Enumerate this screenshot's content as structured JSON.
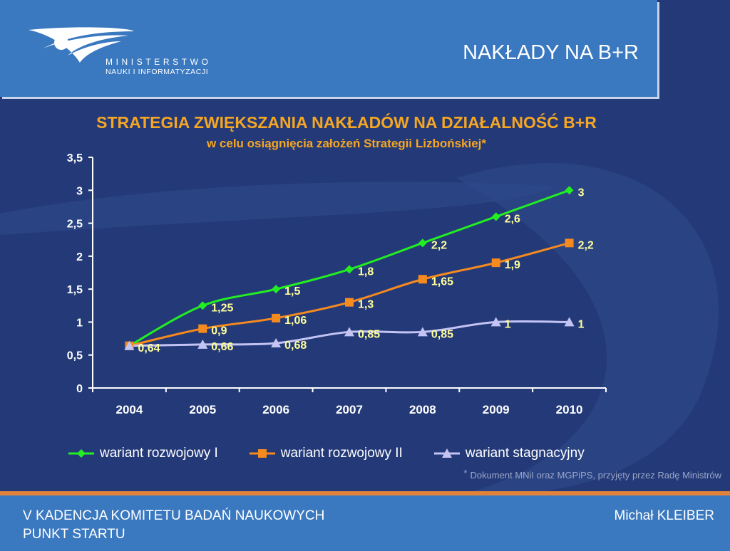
{
  "header": {
    "title": "NAKŁADY NA B+R",
    "ministry_line1": "MINISTERSTWO",
    "ministry_line2": "NAUKI I INFORMATYZACJI"
  },
  "footer": {
    "left_line1": "V KADENCJA KOMITETU BADAŃ NAUKOWYCH",
    "left_line2": "PUNKT STARTU",
    "right": "Michał KLEIBER"
  },
  "footnote": {
    "marker": "*",
    "text": "Dokument MNiI oraz MGPiPS, przyjęty przez Radę Ministrów"
  },
  "colors": {
    "background": "#243a78",
    "band": "#3a78c0",
    "accent": "#e0823a",
    "title": "#f5a623",
    "label": "#ffff99"
  },
  "chart_data": {
    "type": "line",
    "title": "STRATEGIA ZWIĘKSZANIA NAKŁADÓW NA DZIAŁALNOŚĆ B+R",
    "subtitle": "w celu osiągnięcia założeń Strategii Lizbońskiej*",
    "categories": [
      "2004",
      "2005",
      "2006",
      "2007",
      "2008",
      "2009",
      "2010"
    ],
    "ylim": [
      0,
      3.5
    ],
    "yticks": [
      "0",
      "0,5",
      "1",
      "1,5",
      "2",
      "2,5",
      "3",
      "3,5"
    ],
    "grid": false,
    "legend_position": "bottom",
    "series": [
      {
        "name": "wariant rozwojowy I",
        "color": "#22ee22",
        "marker": "diamond",
        "values": [
          0.64,
          1.25,
          1.5,
          1.8,
          2.2,
          2.6,
          3
        ],
        "labels": [
          "",
          "1,25",
          "1,5",
          "1,8",
          "2,2",
          "2,6",
          "3"
        ]
      },
      {
        "name": "wariant rozwojowy II",
        "color": "#f58a1f",
        "marker": "square",
        "values": [
          0.64,
          0.9,
          1.06,
          1.3,
          1.65,
          1.9,
          2.2
        ],
        "labels": [
          "",
          "0,9",
          "1,06",
          "1,3",
          "1,65",
          "1,9",
          "2,2"
        ]
      },
      {
        "name": "wariant stagnacyjny",
        "color": "#c4c4f4",
        "marker": "triangle",
        "values": [
          0.64,
          0.66,
          0.68,
          0.85,
          0.85,
          1,
          1
        ],
        "labels": [
          "0,64",
          "0,66",
          "0,68",
          "0,85",
          "0,85",
          "1",
          "1"
        ]
      }
    ]
  }
}
